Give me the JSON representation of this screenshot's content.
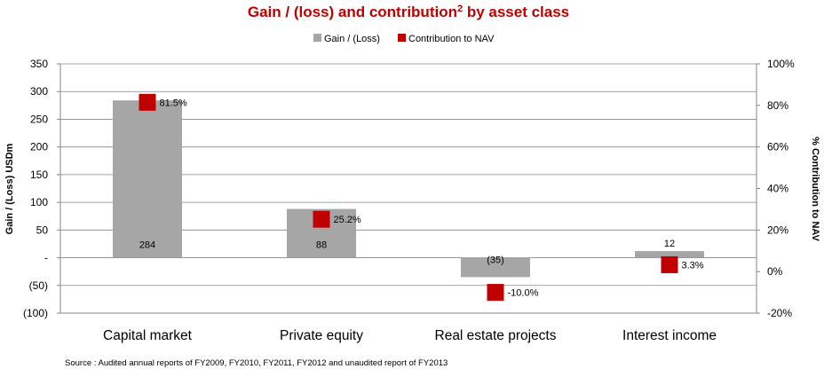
{
  "chart_data": {
    "type": "bar",
    "title": "Gain / (loss) and contribution",
    "title_superscript": "2",
    "title_suffix": " by asset class",
    "categories": [
      "Capital market",
      "Private equity",
      "Real estate projects",
      "Interest income"
    ],
    "series": [
      {
        "name": "Gain / (Loss)",
        "values": [
          284,
          88,
          -35,
          12
        ],
        "labels": [
          "284",
          "88",
          "(35)",
          "12"
        ],
        "color": "#a6a6a6",
        "axis": "left"
      },
      {
        "name": "Contribution to NAV",
        "values": [
          81.5,
          25.2,
          -10.0,
          3.3
        ],
        "labels": [
          "81.5%",
          "25.2%",
          "-10.0%",
          "3.3%"
        ],
        "color": "#c00000",
        "axis": "right"
      }
    ],
    "ylabel": "Gain / (Loss) USDm",
    "ylim": [
      -100,
      350
    ],
    "yticks": [
      350,
      300,
      250,
      200,
      150,
      100,
      50,
      0,
      -50,
      -100
    ],
    "ytick_labels": [
      "350",
      "300",
      "250",
      "200",
      "150",
      "100",
      "50",
      "-",
      "(50)",
      "(100)"
    ],
    "y2label": "% Contribution to NAV",
    "y2lim": [
      -20,
      100
    ],
    "y2ticks": [
      100,
      80,
      60,
      40,
      20,
      0,
      -20
    ],
    "y2tick_labels": [
      "100%",
      "80%",
      "60%",
      "40%",
      "20%",
      "0%",
      "-20%"
    ],
    "grid": true,
    "legend_position": "top-center",
    "source": "Source : Audited annual reports of FY2009, FY2010, FY2011, FY2012 and unaudited report of FY2013",
    "colors": {
      "title": "#c00000",
      "grid": "#868686",
      "axis": "#868686"
    }
  }
}
